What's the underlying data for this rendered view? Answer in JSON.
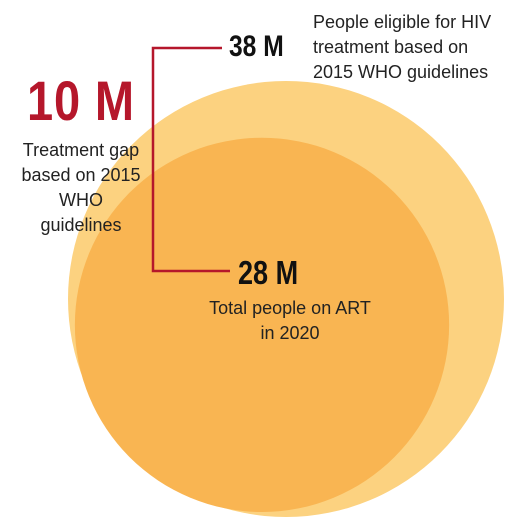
{
  "chart_data": {
    "type": "bubble",
    "unit": "M",
    "series": [
      {
        "value": 38,
        "label": "38 M",
        "description": "People eligible for HIV treatment based on 2015 WHO guidelines",
        "color": "#fcd280"
      },
      {
        "value": 28,
        "label": "28 M",
        "description": "Total people on ART in 2020",
        "color": "#f9b552"
      }
    ],
    "gap": {
      "value": 10,
      "label": "10 M",
      "description": "Treatment gap based on 2015 WHO guidelines",
      "color": "#b5172b"
    }
  }
}
